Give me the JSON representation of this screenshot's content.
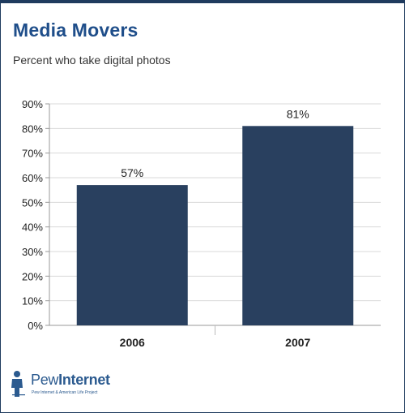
{
  "header": {
    "title": "Media Movers",
    "subtitle": "Percent who take digital photos"
  },
  "branding": {
    "name_part1": "Pew",
    "name_part2": "Internet",
    "tagline": "Pew Internet & American Life Project"
  },
  "colors": {
    "bar": "#29405f",
    "title": "#1f4e8a",
    "grid": "#d8d8d8"
  },
  "chart_data": {
    "type": "bar",
    "categories": [
      "2006",
      "2007"
    ],
    "values": [
      57,
      81
    ],
    "value_labels": [
      "57%",
      "81%"
    ],
    "y_ticks": [
      "0%",
      "10%",
      "20%",
      "30%",
      "40%",
      "50%",
      "60%",
      "70%",
      "80%",
      "90%"
    ],
    "ylim": [
      0,
      90
    ],
    "grid": true,
    "legend": "none"
  }
}
